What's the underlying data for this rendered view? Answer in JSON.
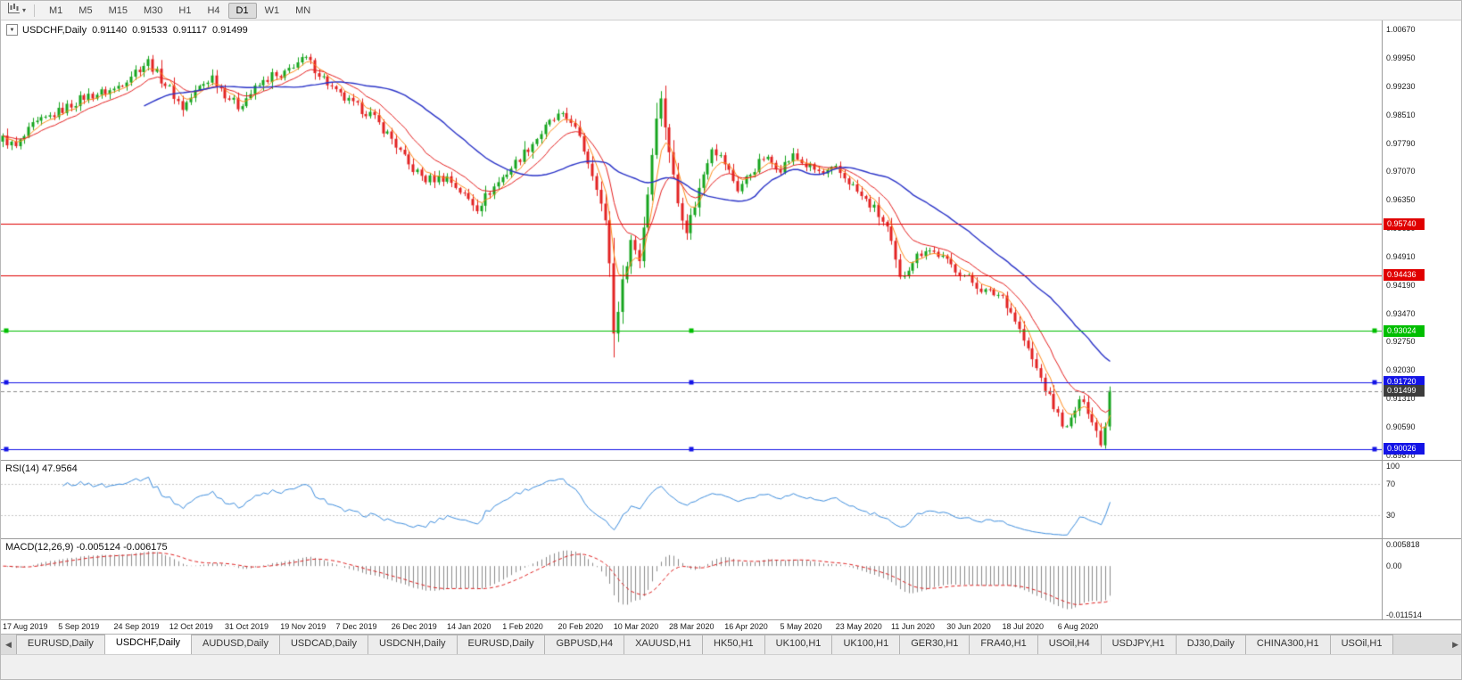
{
  "toolbar": {
    "timeframes": [
      "M1",
      "M5",
      "M15",
      "M30",
      "H1",
      "H4",
      "D1",
      "W1",
      "MN"
    ],
    "active_timeframe": "D1"
  },
  "chart": {
    "title": "USDCHF,Daily",
    "collapse_icon": "▼",
    "ohlc": {
      "open": "0.91140",
      "high": "0.91533",
      "low": "0.91117",
      "close": "0.91499"
    }
  },
  "rsi_panel": {
    "label": "RSI(14) 47.9564",
    "line_color": "#3E8EDE",
    "levels": [
      70,
      30
    ],
    "ticks": [
      {
        "v": 100,
        "label": "100"
      },
      {
        "v": 70,
        "label": "70"
      },
      {
        "v": 30,
        "label": "30"
      }
    ]
  },
  "macd_panel": {
    "label": "MACD(12,26,9) -0.005124 -0.006175",
    "histogram_color": "#8C8C8C",
    "signal_color": "#E02020",
    "range": {
      "min": -0.0125,
      "max": 0.0063
    },
    "ticks": [
      {
        "v": 0.005818,
        "label": "0.005818"
      },
      {
        "v": 0,
        "label": "0.00"
      },
      {
        "v": -0.011514,
        "label": "-0.011514"
      }
    ]
  },
  "tabs": {
    "left_arrow": "◀",
    "right_arrow": "▶",
    "items": [
      {
        "label": "EURUSD,Daily",
        "active": false
      },
      {
        "label": "USDCHF,Daily",
        "active": true
      },
      {
        "label": "AUDUSD,Daily",
        "active": false
      },
      {
        "label": "USDCAD,Daily",
        "active": false
      },
      {
        "label": "USDCNH,Daily",
        "active": false
      },
      {
        "label": "EURUSD,Daily",
        "active": false
      },
      {
        "label": "GBPUSD,H4",
        "active": false
      },
      {
        "label": "XAUUSD,H1",
        "active": false
      },
      {
        "label": "HK50,H1",
        "active": false
      },
      {
        "label": "UK100,H1",
        "active": false
      },
      {
        "label": "UK100,H1",
        "active": false
      },
      {
        "label": "GER30,H1",
        "active": false
      },
      {
        "label": "FRA40,H1",
        "active": false
      },
      {
        "label": "USOil,H4",
        "active": false
      },
      {
        "label": "USDJPY,H1",
        "active": false
      },
      {
        "label": "DJ30,Daily",
        "active": false
      },
      {
        "label": "CHINA300,H1",
        "active": false
      },
      {
        "label": "USOil,H1",
        "active": false
      }
    ]
  },
  "chart_data": {
    "type": "candlestick",
    "symbol": "USDCHF",
    "timeframe": "Daily",
    "bars": 260,
    "last_close": 0.91499,
    "up_color": "#16A51E",
    "down_color": "#E32222",
    "visible_range": {
      "min": 0.8975,
      "max": 1.009
    },
    "price_axis_ticks": [
      "1.00670",
      "0.99950",
      "0.99230",
      "0.98510",
      "0.97790",
      "0.97070",
      "0.96350",
      "0.95630",
      "0.94910",
      "0.94190",
      "0.93470",
      "0.92750",
      "0.92030",
      "0.91310",
      "0.90590",
      "0.89870"
    ],
    "price_waypoints": [
      [
        0,
        0.979
      ],
      [
        3,
        0.9768
      ],
      [
        7,
        0.9822
      ],
      [
        13,
        0.9858
      ],
      [
        19,
        0.9896
      ],
      [
        26,
        0.9915
      ],
      [
        31,
        0.9962
      ],
      [
        34,
        0.9986
      ],
      [
        37,
        0.9941
      ],
      [
        39,
        0.9916
      ],
      [
        42,
        0.9868
      ],
      [
        46,
        0.9921
      ],
      [
        49,
        0.9948
      ],
      [
        52,
        0.9904
      ],
      [
        55,
        0.9872
      ],
      [
        59,
        0.9916
      ],
      [
        63,
        0.9951
      ],
      [
        65,
        0.994
      ],
      [
        68,
        0.9979
      ],
      [
        71,
        0.9992
      ],
      [
        74,
        0.9956
      ],
      [
        78,
        0.9906
      ],
      [
        82,
        0.9876
      ],
      [
        86,
        0.9852
      ],
      [
        91,
        0.979
      ],
      [
        95,
        0.9722
      ],
      [
        99,
        0.9686
      ],
      [
        104,
        0.9692
      ],
      [
        108,
        0.9646
      ],
      [
        111,
        0.9616
      ],
      [
        114,
        0.9656
      ],
      [
        117,
        0.9692
      ],
      [
        121,
        0.9742
      ],
      [
        125,
        0.9792
      ],
      [
        128,
        0.983
      ],
      [
        130,
        0.9846
      ],
      [
        133,
        0.9838
      ],
      [
        136,
        0.9762
      ],
      [
        139,
        0.9672
      ],
      [
        141,
        0.9576
      ],
      [
        142,
        0.9478
      ],
      [
        143,
        0.9295
      ],
      [
        145,
        0.9424
      ],
      [
        147,
        0.9532
      ],
      [
        149,
        0.9484
      ],
      [
        151,
        0.9652
      ],
      [
        153,
        0.9852
      ],
      [
        154,
        0.9888
      ],
      [
        156,
        0.976
      ],
      [
        158,
        0.9628
      ],
      [
        160,
        0.956
      ],
      [
        162,
        0.9622
      ],
      [
        164,
        0.9702
      ],
      [
        166,
        0.9772
      ],
      [
        169,
        0.9728
      ],
      [
        172,
        0.9662
      ],
      [
        175,
        0.9702
      ],
      [
        178,
        0.9742
      ],
      [
        182,
        0.9716
      ],
      [
        185,
        0.9746
      ],
      [
        188,
        0.9722
      ],
      [
        192,
        0.97
      ],
      [
        195,
        0.9712
      ],
      [
        198,
        0.9682
      ],
      [
        201,
        0.9642
      ],
      [
        204,
        0.9612
      ],
      [
        207,
        0.9562
      ],
      [
        208,
        0.952
      ],
      [
        210,
        0.9432
      ],
      [
        213,
        0.9482
      ],
      [
        216,
        0.9512
      ],
      [
        219,
        0.9496
      ],
      [
        221,
        0.9476
      ],
      [
        224,
        0.9452
      ],
      [
        227,
        0.9426
      ],
      [
        230,
        0.9402
      ],
      [
        234,
        0.9392
      ],
      [
        237,
        0.933
      ],
      [
        240,
        0.9252
      ],
      [
        243,
        0.9182
      ],
      [
        245,
        0.9132
      ],
      [
        247,
        0.9088
      ],
      [
        249,
        0.9052
      ],
      [
        251,
        0.9102
      ],
      [
        253,
        0.9132
      ],
      [
        255,
        0.9072
      ],
      [
        257,
        0.9022
      ],
      [
        258,
        0.9062
      ],
      [
        259,
        0.91499
      ]
    ],
    "moving_averages": [
      {
        "type": "ema",
        "period": 5,
        "color": "#FF8C1A"
      },
      {
        "type": "ema",
        "period": 13,
        "color": "#E62020"
      },
      {
        "type": "sma",
        "period": 34,
        "color": "#2B34C8"
      }
    ],
    "hlines": [
      {
        "price": 0.9574,
        "label": "0.95740",
        "color": "#E00000",
        "selected": false
      },
      {
        "price": 0.94436,
        "label": "0.94436",
        "color": "#E00000",
        "selected": false
      },
      {
        "price": 0.93024,
        "label": "0.93024",
        "color": "#00BE00",
        "selected": true
      },
      {
        "price": 0.9172,
        "label": "0.91720",
        "color": "#1414E6",
        "selected": true
      },
      {
        "price": 0.90026,
        "label": "0.90026",
        "color": "#1414E6",
        "selected": true
      }
    ],
    "current_price": {
      "price": 0.91499,
      "label": "0.91499",
      "color": "#3C3C3C"
    },
    "x_axis_dates": [
      "17 Aug 2019",
      "5 Sep 2019",
      "24 Sep 2019",
      "12 Oct 2019",
      "31 Oct 2019",
      "19 Nov 2019",
      "7 Dec 2019",
      "26 Dec 2019",
      "14 Jan 2020",
      "1 Feb 2020",
      "20 Feb 2020",
      "10 Mar 2020",
      "28 Mar 2020",
      "16 Apr 2020",
      "5 May 2020",
      "23 May 2020",
      "11 Jun 2020",
      "30 Jun 2020",
      "18 Jul 2020",
      "6 Aug 2020"
    ],
    "date_spacing_bars": 13
  }
}
